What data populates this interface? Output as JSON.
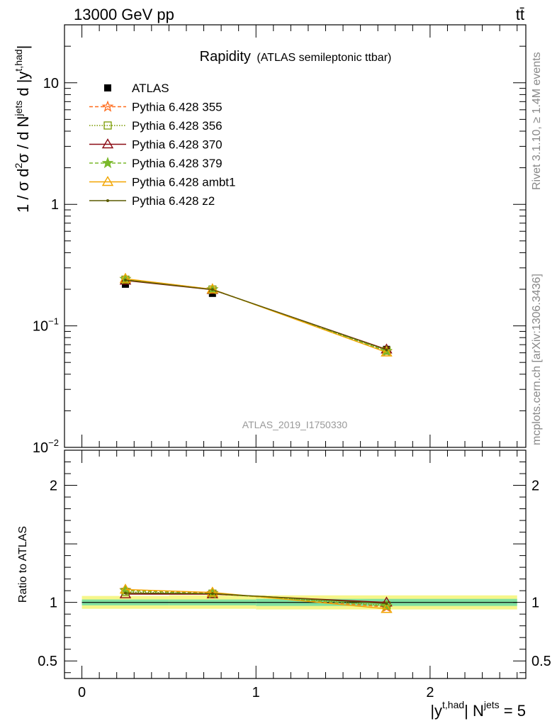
{
  "header": {
    "left": "13000 GeV pp",
    "right": "tt̄"
  },
  "side_labels": {
    "rivet": "Rivet 3.1.10, ≥ 1.4M events",
    "mcplots": "mcplots.cern.ch [arXiv:1306.3436]"
  },
  "watermark": "ATLAS_2019_I1750330",
  "chart_data": [
    {
      "type": "line",
      "panel": "main",
      "title": "Rapidity",
      "subtitle": "(ATLAS semileptonic ttbar)",
      "ylabel_parts": {
        "a": "1 / σ d",
        "sup1": "2",
        "b": "σ / d N",
        "sup2": "jets",
        "c": " d |y",
        "sup3": "t,had",
        "d": "|"
      },
      "xlim": [
        -0.1,
        2.55
      ],
      "ylim": [
        0.01,
        30
      ],
      "yscale": "log",
      "y_ticks": [
        {
          "value": 10,
          "label": "10"
        },
        {
          "value": 1,
          "label": "1"
        },
        {
          "value": 0.1,
          "base": "10",
          "exp": "−1"
        },
        {
          "value": 0.01,
          "base": "10",
          "exp": "−2"
        }
      ],
      "legend_position": "top-left",
      "data": {
        "name": "ATLAS",
        "x": [
          0.25,
          0.75,
          1.75
        ],
        "y": [
          0.22,
          0.185,
          0.064
        ]
      },
      "series": [
        {
          "name": "Pythia 6.428 355",
          "color": "#ff6a1a",
          "dash": "5,3",
          "marker": "star-open",
          "x": [
            0.25,
            0.75,
            1.75
          ],
          "y": [
            0.243,
            0.2,
            0.0615
          ]
        },
        {
          "name": "Pythia 6.428 356",
          "color": "#7a9a00",
          "dash": "1.5,2",
          "marker": "square-open",
          "x": [
            0.25,
            0.75,
            1.75
          ],
          "y": [
            0.24,
            0.199,
            0.0625
          ]
        },
        {
          "name": "Pythia 6.428 370",
          "color": "#8b0a14",
          "dash": "",
          "marker": "triangle-open",
          "x": [
            0.25,
            0.75,
            1.75
          ],
          "y": [
            0.236,
            0.198,
            0.064
          ]
        },
        {
          "name": "Pythia 6.428 379",
          "color": "#7ab82a",
          "dash": "5,3",
          "marker": "star-filled",
          "x": [
            0.25,
            0.75,
            1.75
          ],
          "y": [
            0.242,
            0.199,
            0.062
          ]
        },
        {
          "name": "Pythia 6.428 ambt1",
          "color": "#f2a500",
          "dash": "",
          "marker": "triangle-open",
          "x": [
            0.25,
            0.75,
            1.75
          ],
          "y": [
            0.244,
            0.2,
            0.0605
          ]
        },
        {
          "name": "Pythia 6.428 z2",
          "color": "#5a5a00",
          "dash": "",
          "marker": "dot",
          "x": [
            0.25,
            0.75,
            1.75
          ],
          "y": [
            0.238,
            0.199,
            0.0635
          ]
        }
      ]
    },
    {
      "type": "line",
      "panel": "ratio",
      "ylabel": "Ratio to ATLAS",
      "xlabel_parts": {
        "a": "|y",
        "sup1": "t,had",
        "b": "| N",
        "sup2": "jets",
        "c": " = 5"
      },
      "xlim": [
        -0.1,
        2.55
      ],
      "ylim": [
        0.35,
        2.3
      ],
      "x_ticks": [
        {
          "value": 0,
          "label": "0"
        },
        {
          "value": 1,
          "label": "1"
        },
        {
          "value": 2,
          "label": "2"
        }
      ],
      "y_ticks": [
        {
          "value": 0.5,
          "label": "0.5"
        },
        {
          "value": 1,
          "label": "1"
        },
        {
          "value": 2,
          "label": "2"
        }
      ],
      "bands": [
        {
          "x_range": [
            0,
            0.5
          ],
          "inner": [
            0.975,
            1.025
          ],
          "outer": [
            0.945,
            1.055
          ]
        },
        {
          "x_range": [
            0.5,
            1.0
          ],
          "inner": [
            0.975,
            1.025
          ],
          "outer": [
            0.945,
            1.06
          ]
        },
        {
          "x_range": [
            1.0,
            2.5
          ],
          "inner": [
            0.97,
            1.03
          ],
          "outer": [
            0.94,
            1.06
          ]
        }
      ],
      "band_colors": {
        "inner": "#7fe0a0",
        "outer": "#f6f68a"
      },
      "series": [
        {
          "name": "Pythia 6.428 355",
          "x": [
            0.25,
            0.75,
            1.75
          ],
          "y": [
            1.105,
            1.08,
            0.96
          ]
        },
        {
          "name": "Pythia 6.428 356",
          "x": [
            0.25,
            0.75,
            1.75
          ],
          "y": [
            1.09,
            1.075,
            0.975
          ]
        },
        {
          "name": "Pythia 6.428 370",
          "x": [
            0.25,
            0.75,
            1.75
          ],
          "y": [
            1.07,
            1.07,
            1.0
          ]
        },
        {
          "name": "Pythia 6.428 379",
          "x": [
            0.25,
            0.75,
            1.75
          ],
          "y": [
            1.1,
            1.075,
            0.97
          ]
        },
        {
          "name": "Pythia 6.428 ambt1",
          "x": [
            0.25,
            0.75,
            1.75
          ],
          "y": [
            1.11,
            1.085,
            0.945
          ]
        },
        {
          "name": "Pythia 6.428 z2",
          "x": [
            0.25,
            0.75,
            1.75
          ],
          "y": [
            1.08,
            1.075,
            0.99
          ]
        }
      ]
    }
  ]
}
